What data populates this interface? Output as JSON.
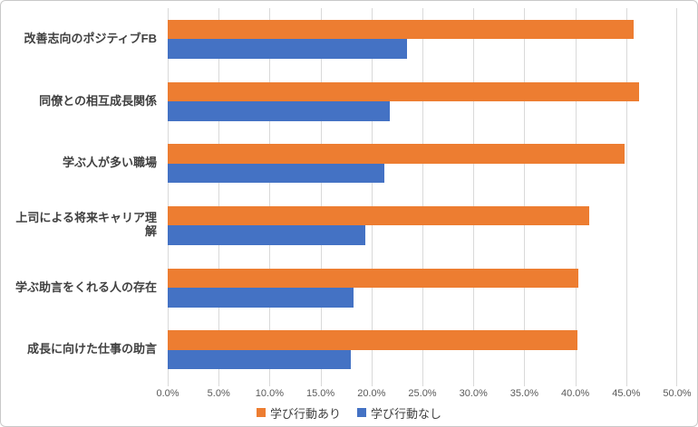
{
  "colors": {
    "series_ari": "#ED7D31",
    "series_nashi": "#4472C4",
    "gridline": "#d9d9d9",
    "tick_text": "#595959",
    "category_text": "#404040",
    "frame_border": "#c9c9c9"
  },
  "chart_data": {
    "type": "bar",
    "orientation": "horizontal",
    "title": "",
    "xlabel": "",
    "ylabel": "",
    "categories": [
      "改善志向のポジティブFB",
      "同僚との相互成長関係",
      "学ぶ人が多い職場",
      "上司による将来キャリア理解",
      "学ぶ助言をくれる人の存在",
      "成長に向けた仕事の助言"
    ],
    "series": [
      {
        "name": "学び行動あり",
        "color": "#ED7D31",
        "values": [
          45.7,
          46.3,
          44.8,
          41.4,
          40.3,
          40.2
        ]
      },
      {
        "name": "学び行動なし",
        "color": "#4472C4",
        "values": [
          23.5,
          21.8,
          21.3,
          19.4,
          18.2,
          18.0
        ]
      }
    ],
    "x_axis": {
      "min": 0,
      "max": 50,
      "step": 5,
      "tick_labels": [
        "0.0%",
        "5.0%",
        "10.0%",
        "15.0%",
        "20.0%",
        "25.0%",
        "30.0%",
        "35.0%",
        "40.0%",
        "45.0%",
        "50.0%"
      ]
    },
    "grid": true,
    "legend_position": "bottom"
  }
}
